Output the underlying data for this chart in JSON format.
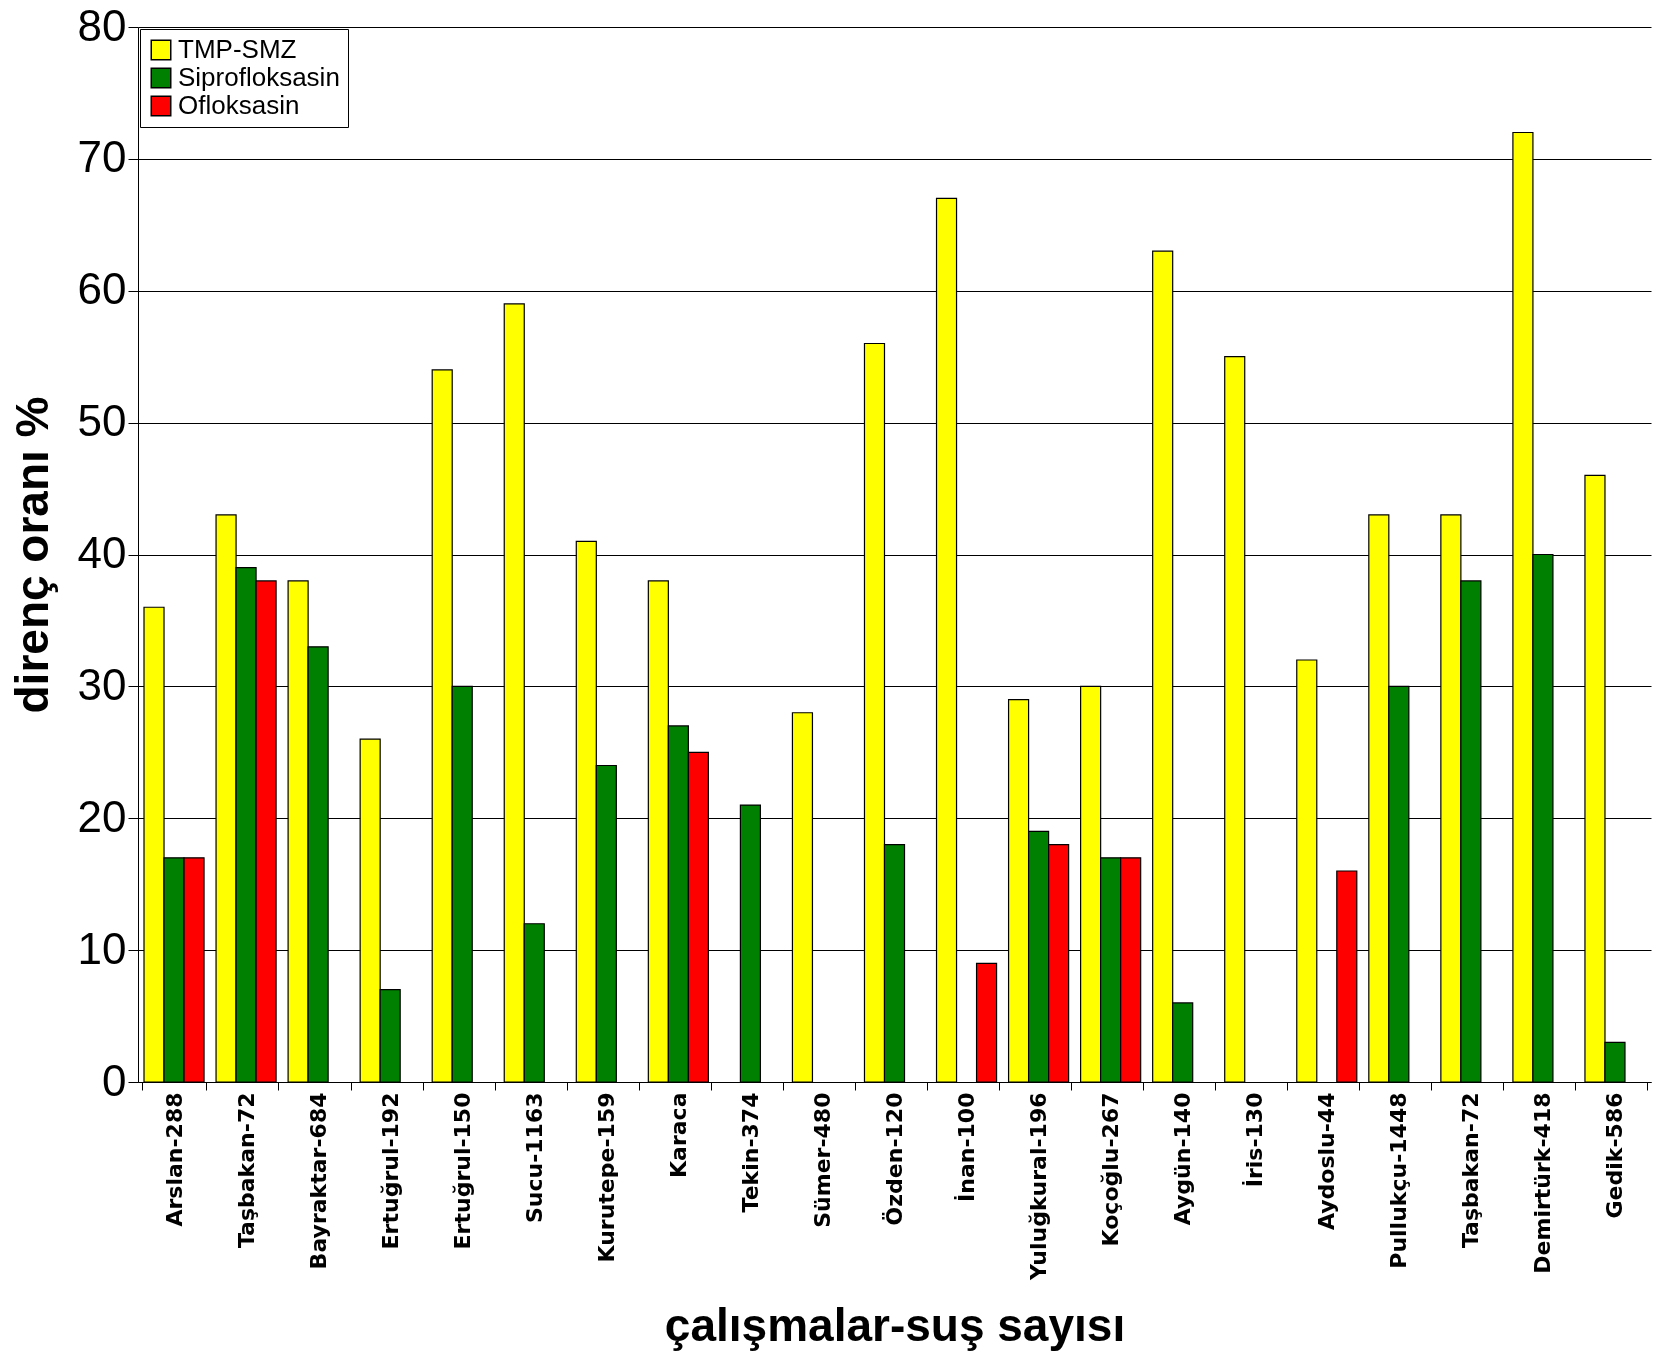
{
  "chart_data": {
    "type": "bar",
    "xlabel": "çalışmalar-suş sayısı",
    "ylabel": "direnç oranı %",
    "categories": [
      "Arslan-288",
      "Taşbakan-72",
      "Bayraktar-684",
      "Ertuğrul-192",
      "Ertuğrul-150",
      "Sucu-1163",
      "Kurutepe-159",
      "Karaca",
      "Tekin-374",
      "Sümer-480",
      "Özden-120",
      "İnan-100",
      "Yuluğkural-196",
      "Koçoğlu-267",
      "Aygün-140",
      "İris-130",
      "Aydoslu-44",
      "Pullukçu-1448",
      "Taşbakan-72",
      "Demirtürk-418",
      "Gedik-586"
    ],
    "series": [
      {
        "name": "TMP-SMZ",
        "color": "#ffff00",
        "values": [
          36,
          43,
          38,
          26,
          54,
          59,
          41,
          38,
          null,
          28,
          56,
          67,
          29,
          30,
          63,
          55,
          32,
          43,
          43,
          72,
          46
        ]
      },
      {
        "name": "Siprofloksasin",
        "color": "#008000",
        "values": [
          17,
          39,
          33,
          7,
          30,
          12,
          24,
          27,
          21,
          null,
          18,
          null,
          19,
          17,
          6,
          null,
          null,
          30,
          38,
          40,
          3
        ]
      },
      {
        "name": "Ofloksasin",
        "color": "#ff0000",
        "values": [
          17,
          38,
          null,
          null,
          null,
          null,
          null,
          25,
          null,
          null,
          null,
          9,
          18,
          17,
          null,
          null,
          16,
          null,
          null,
          null,
          null
        ]
      }
    ],
    "ylim": [
      0,
      80
    ],
    "yticks": [
      0,
      10,
      20,
      30,
      40,
      50,
      60,
      70,
      80
    ],
    "grid": "y",
    "legend": "top left"
  }
}
